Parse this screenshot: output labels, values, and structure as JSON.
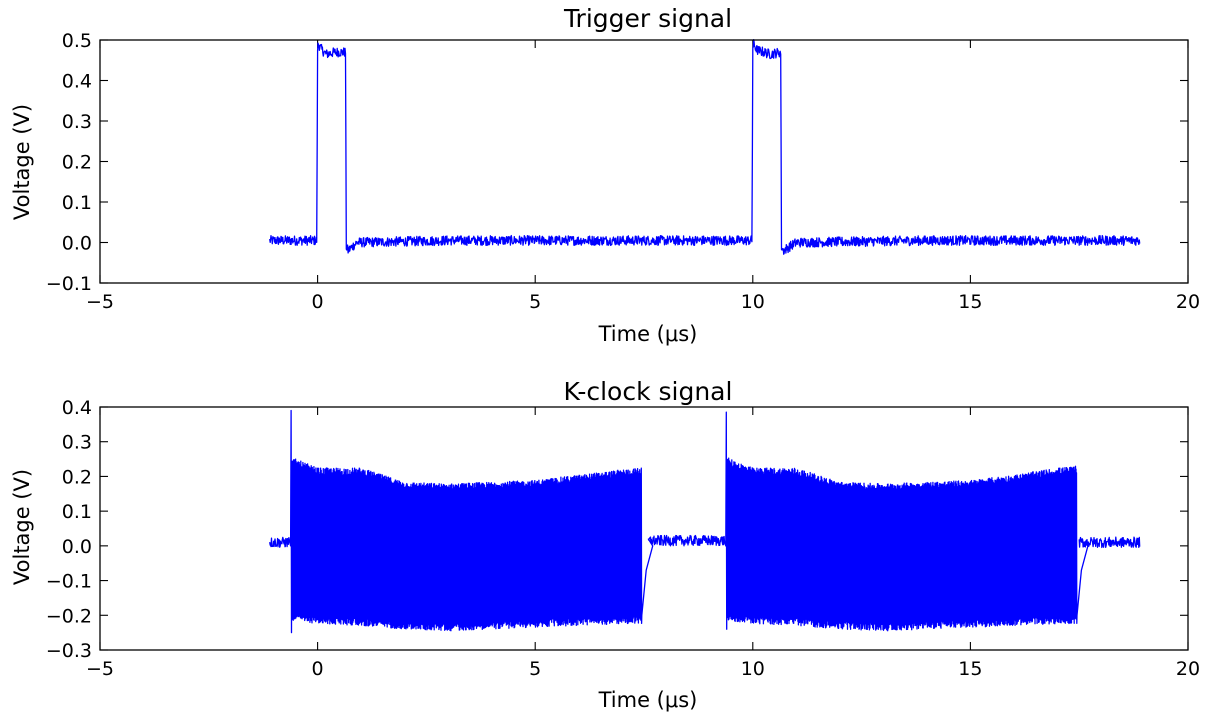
{
  "chart_data": [
    {
      "type": "line",
      "title": "Trigger signal",
      "xlabel": "Time (μs)",
      "ylabel": "Voltage (V)",
      "xlim": [
        -5,
        20
      ],
      "ylim": [
        -0.1,
        0.5
      ],
      "xticks": [
        "−5",
        "0",
        "5",
        "10",
        "15",
        "20"
      ],
      "yticks": [
        "−0.1",
        "0.0",
        "0.1",
        "0.2",
        "0.3",
        "0.4",
        "0.5"
      ],
      "grid": false,
      "color": "#0000ff",
      "series": [
        {
          "x": [
            -1.1,
            -0.02,
            0.0,
            0.02,
            0.1,
            0.2,
            0.4,
            0.64,
            0.66,
            0.7,
            0.9,
            3.0,
            6.0,
            9.0,
            9.98,
            10.0,
            10.02,
            10.1,
            10.4,
            10.64,
            10.66,
            10.7,
            11.0,
            14.0,
            17.0,
            18.9
          ],
          "y": [
            0.005,
            0.005,
            0.48,
            0.49,
            0.475,
            0.465,
            0.47,
            0.47,
            -0.01,
            -0.02,
            0.0,
            0.005,
            0.005,
            0.005,
            0.005,
            0.48,
            0.49,
            0.475,
            0.465,
            0.47,
            -0.01,
            -0.02,
            0.0,
            0.005,
            0.005,
            0.005
          ],
          "noise_amplitude": 0.012
        }
      ]
    },
    {
      "type": "line",
      "title": "K-clock signal",
      "xlabel": "Time (μs)",
      "ylabel": "Voltage (V)",
      "xlim": [
        -5,
        20
      ],
      "ylim": [
        -0.3,
        0.4
      ],
      "xticks": [
        "−5",
        "0",
        "5",
        "10",
        "15",
        "20"
      ],
      "yticks": [
        "−0.3",
        "−0.2",
        "−0.1",
        "0.0",
        "0.1",
        "0.2",
        "0.3",
        "0.4"
      ],
      "grid": false,
      "color": "#0000ff",
      "series": [
        {
          "quiet_segments": [
            [
              -1.1,
              -0.65,
              0.01
            ],
            [
              7.6,
              9.35,
              0.015
            ],
            [
              17.5,
              18.9,
              0.01
            ]
          ],
          "bursts": [
            {
              "x_start": -0.62,
              "x_end": 7.45,
              "spike_max": 0.39,
              "spike_min": -0.25,
              "upper_envelope": [
                [
                  -0.6,
                  0.25
                ],
                [
                  0.0,
                  0.22
                ],
                [
                  1.0,
                  0.22
                ],
                [
                  2.0,
                  0.18
                ],
                [
                  3.0,
                  0.175
                ],
                [
                  4.0,
                  0.18
                ],
                [
                  5.0,
                  0.185
                ],
                [
                  6.0,
                  0.2
                ],
                [
                  7.0,
                  0.215
                ],
                [
                  7.45,
                  0.22
                ]
              ],
              "lower_envelope": [
                [
                  -0.6,
                  -0.21
                ],
                [
                  0.0,
                  -0.22
                ],
                [
                  1.0,
                  -0.225
                ],
                [
                  2.0,
                  -0.235
                ],
                [
                  3.0,
                  -0.24
                ],
                [
                  4.0,
                  -0.235
                ],
                [
                  5.0,
                  -0.23
                ],
                [
                  6.0,
                  -0.225
                ],
                [
                  7.0,
                  -0.22
                ],
                [
                  7.45,
                  -0.22
                ]
              ],
              "decay_end": [
                [
                  7.45,
                  -0.2
                ],
                [
                  7.55,
                  -0.07
                ],
                [
                  7.7,
                  0.0
                ]
              ]
            },
            {
              "x_start": 9.38,
              "x_end": 17.45,
              "spike_max": 0.385,
              "spike_min": -0.24,
              "upper_envelope": [
                [
                  9.4,
                  0.25
                ],
                [
                  10.0,
                  0.22
                ],
                [
                  11.0,
                  0.22
                ],
                [
                  12.0,
                  0.18
                ],
                [
                  13.0,
                  0.175
                ],
                [
                  14.0,
                  0.18
                ],
                [
                  15.0,
                  0.185
                ],
                [
                  16.0,
                  0.2
                ],
                [
                  17.0,
                  0.22
                ],
                [
                  17.45,
                  0.225
                ]
              ],
              "lower_envelope": [
                [
                  9.4,
                  -0.21
                ],
                [
                  10.0,
                  -0.22
                ],
                [
                  11.0,
                  -0.225
                ],
                [
                  12.0,
                  -0.235
                ],
                [
                  13.0,
                  -0.24
                ],
                [
                  14.0,
                  -0.235
                ],
                [
                  15.0,
                  -0.23
                ],
                [
                  16.0,
                  -0.225
                ],
                [
                  17.0,
                  -0.22
                ],
                [
                  17.45,
                  -0.22
                ]
              ],
              "decay_end": [
                [
                  17.45,
                  -0.2
                ],
                [
                  17.55,
                  -0.07
                ],
                [
                  17.7,
                  0.0
                ]
              ]
            }
          ]
        }
      ]
    }
  ]
}
